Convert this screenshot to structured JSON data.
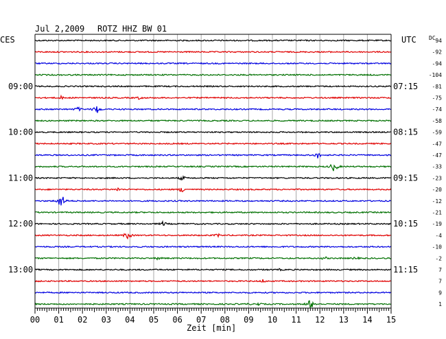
{
  "chart_data": {
    "type": "line",
    "title": "Jul 2,2009",
    "station": "ROTZ HHZ BW 01",
    "left_timezone": "CES",
    "right_timezone": "UTC",
    "dc_label": "DC",
    "xlabel": "Zeit [min]",
    "xlim": [
      0,
      15
    ],
    "x_ticks": [
      "00",
      "01",
      "02",
      "03",
      "04",
      "05",
      "06",
      "07",
      "08",
      "09",
      "10",
      "11",
      "12",
      "13",
      "14",
      "15"
    ],
    "left_hour_labels": [
      "09:00",
      "10:00",
      "11:00",
      "12:00",
      "13:00"
    ],
    "right_hour_labels": [
      "07:15",
      "08:15",
      "09:15",
      "10:15",
      "11:15"
    ],
    "trace_colors": [
      "#000000",
      "#e00000",
      "#0000e0",
      "#007000"
    ],
    "dc_offsets": [
      "94",
      "-92",
      "-94",
      "-104",
      "-81",
      "-75",
      "-74",
      "-58",
      "-59",
      "-47",
      "-47",
      "-33",
      "-23",
      "-20",
      "-12",
      "-21",
      "-19",
      "-4",
      "-10",
      "-2",
      "7",
      "7",
      "9",
      "1"
    ],
    "events": [
      {
        "trace": 5,
        "minute": 1.1,
        "amp": 3
      },
      {
        "trace": 5,
        "minute": 4.4,
        "amp": 3
      },
      {
        "trace": 6,
        "minute": 1.8,
        "amp": 4
      },
      {
        "trace": 6,
        "minute": 2.6,
        "amp": 7
      },
      {
        "trace": 10,
        "minute": 11.9,
        "amp": 5
      },
      {
        "trace": 11,
        "minute": 12.6,
        "amp": 8
      },
      {
        "trace": 12,
        "minute": 6.2,
        "amp": 4
      },
      {
        "trace": 13,
        "minute": 3.5,
        "amp": 3
      },
      {
        "trace": 13,
        "minute": 6.2,
        "amp": 5
      },
      {
        "trace": 14,
        "minute": 1.1,
        "amp": 11
      },
      {
        "trace": 16,
        "minute": 5.4,
        "amp": 4
      },
      {
        "trace": 17,
        "minute": 3.9,
        "amp": 6
      },
      {
        "trace": 17,
        "minute": 7.7,
        "amp": 3
      },
      {
        "trace": 19,
        "minute": 5.2,
        "amp": 3
      },
      {
        "trace": 19,
        "minute": 12.2,
        "amp": 3
      },
      {
        "trace": 19,
        "minute": 13.5,
        "amp": 3
      },
      {
        "trace": 20,
        "minute": 10.3,
        "amp": 2
      },
      {
        "trace": 21,
        "minute": 9.6,
        "amp": 3
      },
      {
        "trace": 23,
        "minute": 9.0,
        "amp": 2
      },
      {
        "trace": 23,
        "minute": 11.6,
        "amp": 8
      },
      {
        "trace": 23,
        "minute": 9.4,
        "amp": 3
      }
    ]
  }
}
